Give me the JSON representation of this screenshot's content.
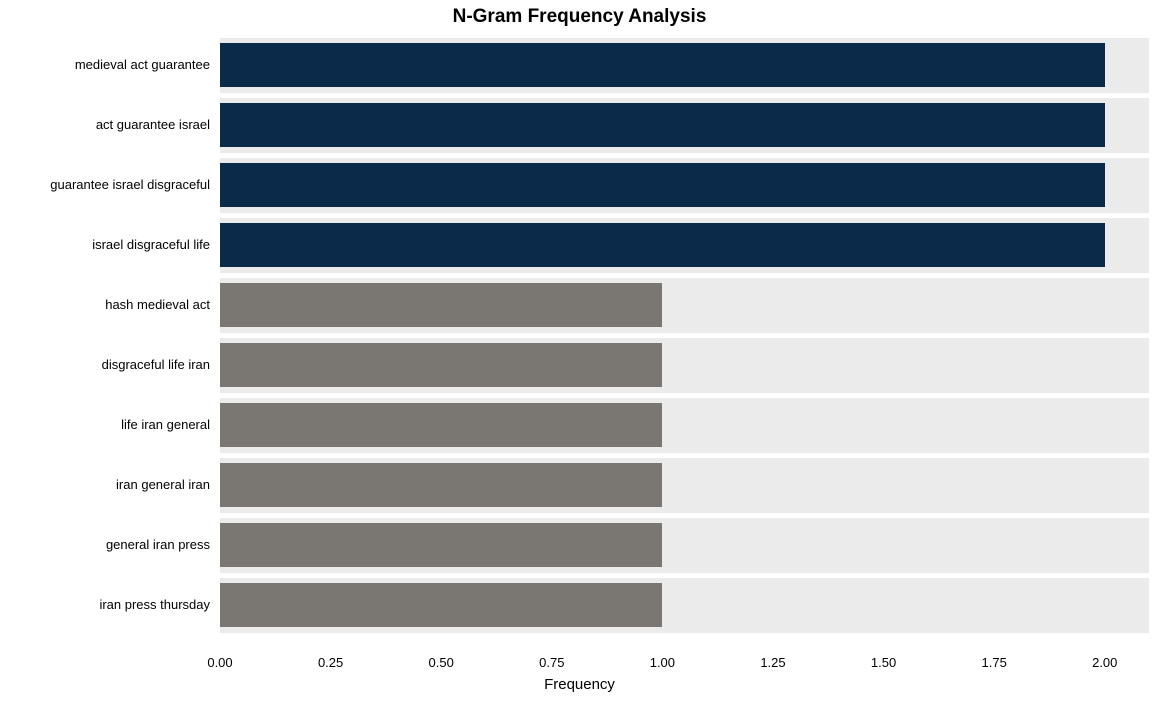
{
  "chart": {
    "type": "bar-horizontal",
    "title": "N-Gram Frequency Analysis",
    "title_fontsize": 19,
    "title_fontweight": "bold",
    "xaxis_label": "Frequency",
    "xaxis_label_fontsize": 15,
    "label_fontsize": 13,
    "background_color": "#ffffff",
    "stripe_color": "#ebebeb",
    "bar_height_ratio": 0.73,
    "xlim": [
      0,
      2
    ],
    "xtick_step": 0.25,
    "xticks": [
      "0.00",
      "0.25",
      "0.50",
      "0.75",
      "1.00",
      "1.25",
      "1.50",
      "1.75",
      "2.00"
    ],
    "plot_padding_right_units": 0.1,
    "series": [
      {
        "label": "medieval act guarantee",
        "value": 2,
        "color": "#0b2a4a"
      },
      {
        "label": "act guarantee israel",
        "value": 2,
        "color": "#0b2a4a"
      },
      {
        "label": "guarantee israel disgraceful",
        "value": 2,
        "color": "#0b2a4a"
      },
      {
        "label": "israel disgraceful life",
        "value": 2,
        "color": "#0b2a4a"
      },
      {
        "label": "hash medieval act",
        "value": 1,
        "color": "#7a7772"
      },
      {
        "label": "disgraceful life iran",
        "value": 1,
        "color": "#7a7772"
      },
      {
        "label": "life iran general",
        "value": 1,
        "color": "#7a7772"
      },
      {
        "label": "iran general iran",
        "value": 1,
        "color": "#7a7772"
      },
      {
        "label": "general iran press",
        "value": 1,
        "color": "#7a7772"
      },
      {
        "label": "iran press thursday",
        "value": 1,
        "color": "#7a7772"
      }
    ]
  }
}
